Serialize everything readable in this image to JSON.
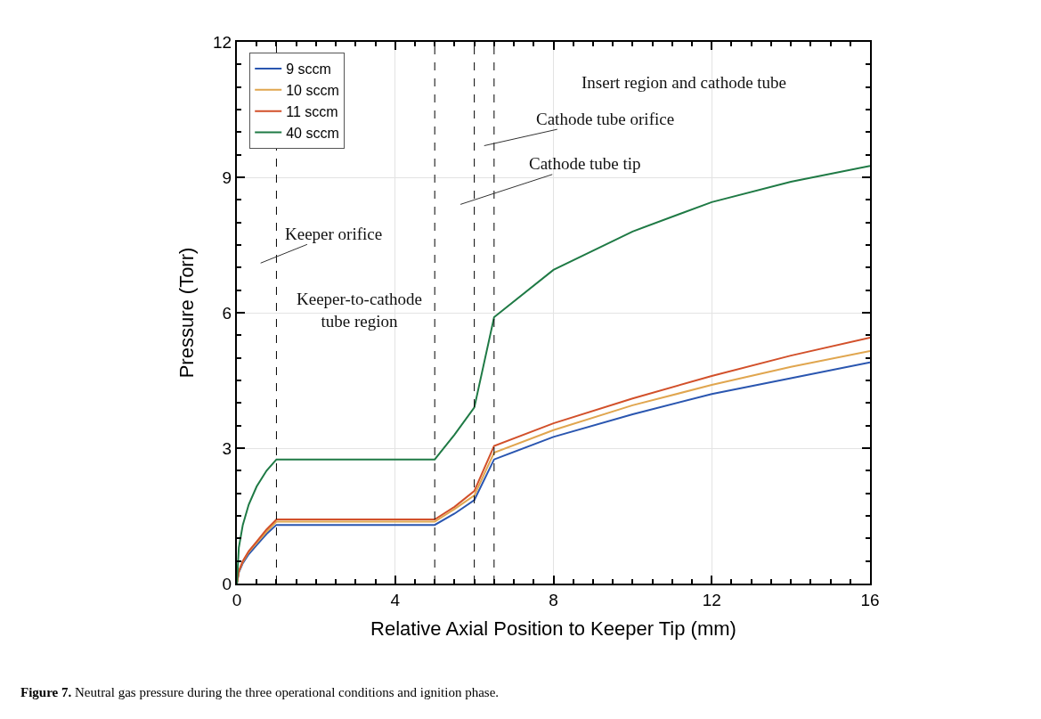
{
  "chart_data": {
    "type": "line",
    "xlabel": "Relative Axial Position to Keeper Tip (mm)",
    "ylabel": "Pressure (Torr)",
    "x": [
      0,
      0.05,
      0.15,
      0.3,
      0.5,
      0.75,
      1.0,
      5.0,
      5.5,
      6.0,
      6.5,
      8,
      10,
      12,
      14,
      16
    ],
    "series": [
      {
        "name": "9 sccm",
        "color": "#2a56b0",
        "values": [
          0,
          0.25,
          0.45,
          0.65,
          0.85,
          1.1,
          1.3,
          1.3,
          1.55,
          1.85,
          2.75,
          3.25,
          3.75,
          4.2,
          4.55,
          4.9
        ]
      },
      {
        "name": "10 sccm",
        "color": "#e0a64f",
        "values": [
          0,
          0.27,
          0.48,
          0.7,
          0.9,
          1.15,
          1.37,
          1.37,
          1.65,
          1.95,
          2.9,
          3.4,
          3.95,
          4.4,
          4.8,
          5.15
        ]
      },
      {
        "name": "11 sccm",
        "color": "#d2502a",
        "values": [
          0,
          0.28,
          0.5,
          0.72,
          0.93,
          1.2,
          1.42,
          1.42,
          1.7,
          2.05,
          3.05,
          3.55,
          4.1,
          4.6,
          5.05,
          5.45
        ]
      },
      {
        "name": "40 sccm",
        "color": "#1f7a45",
        "values": [
          0,
          0.8,
          1.3,
          1.75,
          2.15,
          2.5,
          2.75,
          2.75,
          3.3,
          3.9,
          5.9,
          6.95,
          7.8,
          8.45,
          8.9,
          9.25
        ]
      }
    ],
    "xlim": [
      0,
      16
    ],
    "xticks": [
      0,
      4,
      8,
      12,
      16
    ],
    "ylim": [
      0,
      12
    ],
    "yticks": [
      0,
      3,
      6,
      9,
      12
    ],
    "grid": true,
    "legend": "top left",
    "marker": "none",
    "line_style": "solid",
    "ref_lines": [
      {
        "axis": "x",
        "value": 1,
        "color": "#000000",
        "line_style": "dashed"
      },
      {
        "axis": "x",
        "value": 5,
        "color": "#000000",
        "line_style": "dashed"
      },
      {
        "axis": "x",
        "value": 6,
        "color": "#000000",
        "line_style": "dashed"
      },
      {
        "axis": "x",
        "value": 6.5,
        "color": "#000000",
        "line_style": "dashed"
      }
    ],
    "annotations": [
      "Keeper orifice",
      "Keeper-to-cathode\ntube region",
      "Insert region and cathode tube",
      "Cathode tube orifice",
      "Cathode tube tip",
      "Figure 7. Neutral gas pressure during the three operational conditions and ignition phase."
    ]
  }
}
